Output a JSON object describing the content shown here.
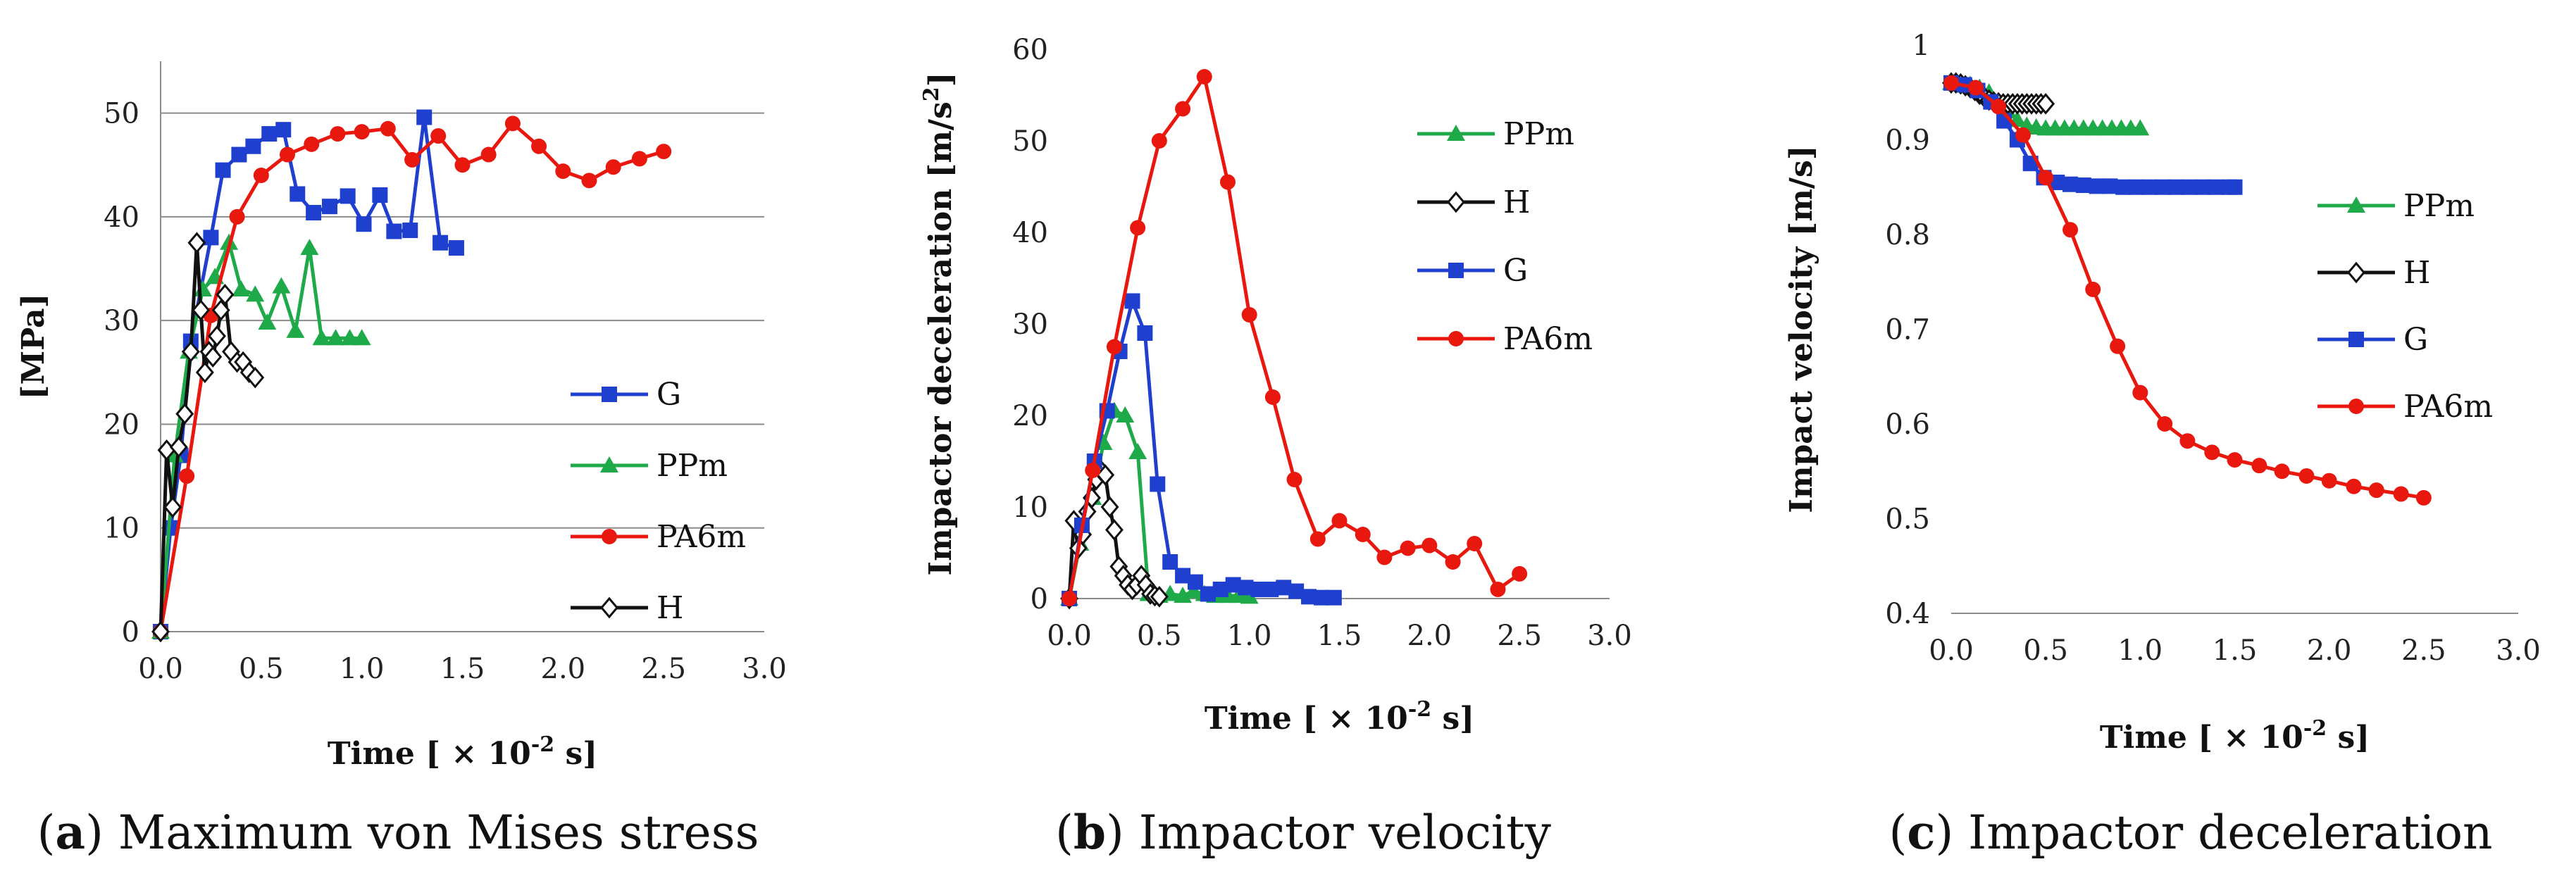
{
  "chart_data": [
    {
      "id": "a",
      "type": "line",
      "caption_letter": "a",
      "caption_open": "(",
      "caption_close": ")",
      "caption_text": " Maximum von Mises stress",
      "title": "",
      "xlabel_main": "Time [ × 10",
      "xlabel_sup": "-2",
      "xlabel_tail": " s]",
      "ylabel": "[MPa]",
      "xlim": [
        0,
        3
      ],
      "ylim": [
        0,
        55
      ],
      "grid": "horizontal",
      "xticks": [
        0,
        0.5,
        1,
        1.5,
        2,
        2.5,
        3
      ],
      "xtick_labels": [
        "0.0",
        "0.5",
        "1.0",
        "1.5",
        "2.0",
        "2.5",
        "3.0"
      ],
      "yticks": [
        0,
        10,
        20,
        30,
        40,
        50
      ],
      "ytick_labels": [
        "0",
        "10",
        "20",
        "30",
        "40",
        "50"
      ],
      "legend_order": [
        "G",
        "PPm",
        "PA6m",
        "H"
      ],
      "series": [
        {
          "name": "G",
          "color": "#1f3fcf",
          "marker": "square",
          "x": [
            0,
            0.05,
            0.1,
            0.15,
            0.25,
            0.31,
            0.39,
            0.46,
            0.54,
            0.61,
            0.68,
            0.76,
            0.84,
            0.93,
            1.01,
            1.09,
            1.16,
            1.24,
            1.31,
            1.39,
            1.47
          ],
          "y": [
            0,
            10,
            17,
            28,
            38,
            44.5,
            46,
            46.8,
            48,
            48.4,
            42.2,
            40.4,
            41,
            42,
            39.3,
            42.1,
            38.6,
            38.7,
            49.6,
            37.5,
            37
          ]
        },
        {
          "name": "PPm",
          "color": "#1faa4a",
          "marker": "triangle",
          "x": [
            0,
            0.07,
            0.14,
            0.21,
            0.27,
            0.34,
            0.4,
            0.47,
            0.53,
            0.6,
            0.67,
            0.74,
            0.8,
            0.87,
            0.94,
            1.0
          ],
          "y": [
            0,
            17,
            27,
            33,
            34.2,
            37.5,
            33,
            32.5,
            29.8,
            33.3,
            29,
            37,
            28.3,
            28.3,
            28.3,
            28.3
          ]
        },
        {
          "name": "PA6m",
          "color": "#e8180f",
          "marker": "circle",
          "x": [
            0,
            0.13,
            0.25,
            0.38,
            0.5,
            0.63,
            0.75,
            0.88,
            1.0,
            1.13,
            1.25,
            1.38,
            1.5,
            1.63,
            1.75,
            1.88,
            2.0,
            2.13,
            2.25,
            2.38,
            2.5
          ],
          "y": [
            0,
            15,
            30.5,
            40,
            44,
            46,
            47,
            48,
            48.2,
            48.5,
            45.5,
            47.8,
            45,
            46,
            49,
            46.8,
            44.4,
            43.5,
            44.8,
            45.6,
            46.3
          ]
        },
        {
          "name": "H",
          "color": "#111111",
          "marker": "diamond",
          "x": [
            0,
            0.03,
            0.06,
            0.09,
            0.12,
            0.15,
            0.18,
            0.2,
            0.22,
            0.24,
            0.26,
            0.28,
            0.3,
            0.32,
            0.35,
            0.38,
            0.41,
            0.44,
            0.47
          ],
          "y": [
            0,
            17.5,
            12,
            17.8,
            21,
            27,
            37.5,
            31,
            25,
            27,
            26.5,
            28.5,
            31,
            32.5,
            27,
            26,
            26,
            25,
            24.5
          ]
        }
      ]
    },
    {
      "id": "b",
      "type": "line",
      "caption_letter": "b",
      "caption_open": "(",
      "caption_close": ")",
      "caption_text": " Impactor velocity",
      "title": "",
      "xlabel_main": "Time [ × 10",
      "xlabel_sup": "-2",
      "xlabel_tail": " s]",
      "ylabel_main": "Impactor deceleration [m/s",
      "ylabel_sup": "2",
      "ylabel_tail": "]",
      "xlim": [
        0,
        3
      ],
      "ylim": [
        0,
        60
      ],
      "grid": "none",
      "xticks": [
        0,
        0.5,
        1,
        1.5,
        2,
        2.5,
        3
      ],
      "xtick_labels": [
        "0.0",
        "0.5",
        "1.0",
        "1.5",
        "2.0",
        "2.5",
        "3.0"
      ],
      "yticks": [
        0,
        10,
        20,
        30,
        40,
        50,
        60
      ],
      "ytick_labels": [
        "0",
        "10",
        "20",
        "30",
        "40",
        "50",
        "60"
      ],
      "legend_order": [
        "PPm",
        "H",
        "G",
        "PA6m"
      ],
      "series": [
        {
          "name": "PPm",
          "color": "#1faa4a",
          "marker": "triangle",
          "x": [
            0,
            0.06,
            0.13,
            0.19,
            0.25,
            0.31,
            0.38,
            0.44,
            0.5,
            0.56,
            0.63,
            0.69,
            0.75,
            0.81,
            0.88,
            0.94,
            1.0
          ],
          "y": [
            0,
            6,
            11,
            17,
            20.5,
            20,
            16,
            0.5,
            0.3,
            0.5,
            0.3,
            0.8,
            0.5,
            0.3,
            0.3,
            0.3,
            0.2
          ]
        },
        {
          "name": "H",
          "color": "#111111",
          "marker": "diamond",
          "x": [
            0,
            0.025,
            0.05,
            0.075,
            0.1,
            0.125,
            0.15,
            0.175,
            0.2,
            0.225,
            0.25,
            0.275,
            0.3,
            0.325,
            0.35,
            0.375,
            0.4,
            0.425,
            0.45,
            0.475,
            0.5
          ],
          "y": [
            0,
            8.5,
            5.5,
            7,
            9.5,
            11,
            13,
            14,
            13.5,
            10,
            7.5,
            3.5,
            2.5,
            1.5,
            1,
            1.5,
            2.5,
            1.5,
            0.5,
            0.3,
            0.2
          ]
        },
        {
          "name": "G",
          "color": "#1f3fcf",
          "marker": "square",
          "x": [
            0,
            0.07,
            0.14,
            0.21,
            0.28,
            0.35,
            0.42,
            0.49,
            0.56,
            0.63,
            0.7,
            0.77,
            0.84,
            0.91,
            0.98,
            1.05,
            1.12,
            1.19,
            1.26,
            1.33,
            1.4,
            1.47
          ],
          "y": [
            0,
            8,
            15,
            20.5,
            27,
            32.5,
            29,
            12.5,
            4,
            2.5,
            1.8,
            0.5,
            1,
            1.5,
            1.2,
            1,
            1,
            1.2,
            0.8,
            0.2,
            0.1,
            0.1
          ]
        },
        {
          "name": "PA6m",
          "color": "#e8180f",
          "marker": "circle",
          "x": [
            0,
            0.13,
            0.25,
            0.38,
            0.5,
            0.63,
            0.75,
            0.88,
            1.0,
            1.13,
            1.25,
            1.38,
            1.5,
            1.63,
            1.75,
            1.88,
            2.0,
            2.13,
            2.25,
            2.38,
            2.5
          ],
          "y": [
            0,
            14,
            27.5,
            40.5,
            50,
            53.5,
            57,
            45.5,
            31,
            22,
            13,
            6.5,
            8.5,
            7,
            4.5,
            5.5,
            5.8,
            4,
            6,
            1,
            2.7
          ]
        }
      ]
    },
    {
      "id": "c",
      "type": "line",
      "caption_letter": "c",
      "caption_open": "(",
      "caption_close": ")",
      "caption_text": " Impactor deceleration",
      "title": "",
      "xlabel_main": "Time [ × 10",
      "xlabel_sup": "-2",
      "xlabel_tail": " s]",
      "ylabel": "Impact velocity [m/s]",
      "xlim": [
        0,
        3
      ],
      "ylim": [
        0.4,
        1
      ],
      "grid": "none",
      "xticks": [
        0,
        0.5,
        1,
        1.5,
        2,
        2.5,
        3
      ],
      "xtick_labels": [
        "0.0",
        "0.5",
        "1.0",
        "1.5",
        "2.0",
        "2.5",
        "3.0"
      ],
      "yticks": [
        0.4,
        0.5,
        0.6,
        0.7,
        0.8,
        0.9,
        1
      ],
      "ytick_labels": [
        "0.4",
        "0.5",
        "0.6",
        "0.7",
        "0.8",
        "0.9",
        "1"
      ],
      "legend_order": [
        "PPm",
        "H",
        "G",
        "PA6m"
      ],
      "series": [
        {
          "name": "PPm",
          "color": "#1faa4a",
          "marker": "triangle",
          "x": [
            0,
            0.05,
            0.1,
            0.15,
            0.2,
            0.25,
            0.3,
            0.35,
            0.4,
            0.45,
            0.5,
            0.55,
            0.6,
            0.65,
            0.7,
            0.75,
            0.8,
            0.85,
            0.9,
            0.95,
            1.0
          ],
          "y": [
            0.96,
            0.96,
            0.958,
            0.955,
            0.95,
            0.94,
            0.93,
            0.921,
            0.915,
            0.913,
            0.912,
            0.912,
            0.912,
            0.912,
            0.912,
            0.912,
            0.912,
            0.912,
            0.912,
            0.912,
            0.912
          ]
        },
        {
          "name": "H",
          "color": "#111111",
          "marker": "diamond",
          "x": [
            0,
            0.025,
            0.05,
            0.075,
            0.1,
            0.125,
            0.15,
            0.175,
            0.2,
            0.225,
            0.25,
            0.275,
            0.3,
            0.325,
            0.35,
            0.375,
            0.4,
            0.425,
            0.45,
            0.475,
            0.5
          ],
          "y": [
            0.96,
            0.96,
            0.959,
            0.957,
            0.955,
            0.952,
            0.948,
            0.945,
            0.942,
            0.94,
            0.939,
            0.938,
            0.938,
            0.938,
            0.938,
            0.938,
            0.938,
            0.938,
            0.938,
            0.938,
            0.938
          ]
        },
        {
          "name": "G",
          "color": "#1f3fcf",
          "marker": "square",
          "x": [
            0,
            0.07,
            0.14,
            0.21,
            0.28,
            0.35,
            0.42,
            0.49,
            0.56,
            0.63,
            0.7,
            0.77,
            0.84,
            0.91,
            0.98,
            1.05,
            1.12,
            1.19,
            1.26,
            1.33,
            1.4,
            1.47,
            1.5
          ],
          "y": [
            0.96,
            0.958,
            0.952,
            0.94,
            0.92,
            0.9,
            0.875,
            0.86,
            0.855,
            0.853,
            0.852,
            0.851,
            0.851,
            0.85,
            0.85,
            0.85,
            0.85,
            0.85,
            0.85,
            0.85,
            0.85,
            0.85,
            0.85
          ]
        },
        {
          "name": "PA6m",
          "color": "#e8180f",
          "marker": "circle",
          "x": [
            0,
            0.13,
            0.25,
            0.38,
            0.5,
            0.63,
            0.75,
            0.88,
            1.0,
            1.13,
            1.25,
            1.38,
            1.5,
            1.63,
            1.75,
            1.88,
            2.0,
            2.13,
            2.25,
            2.38,
            2.5
          ],
          "y": [
            0.96,
            0.955,
            0.935,
            0.905,
            0.86,
            0.805,
            0.742,
            0.682,
            0.633,
            0.6,
            0.582,
            0.57,
            0.562,
            0.556,
            0.55,
            0.545,
            0.54,
            0.534,
            0.53,
            0.526,
            0.522
          ]
        }
      ]
    }
  ]
}
